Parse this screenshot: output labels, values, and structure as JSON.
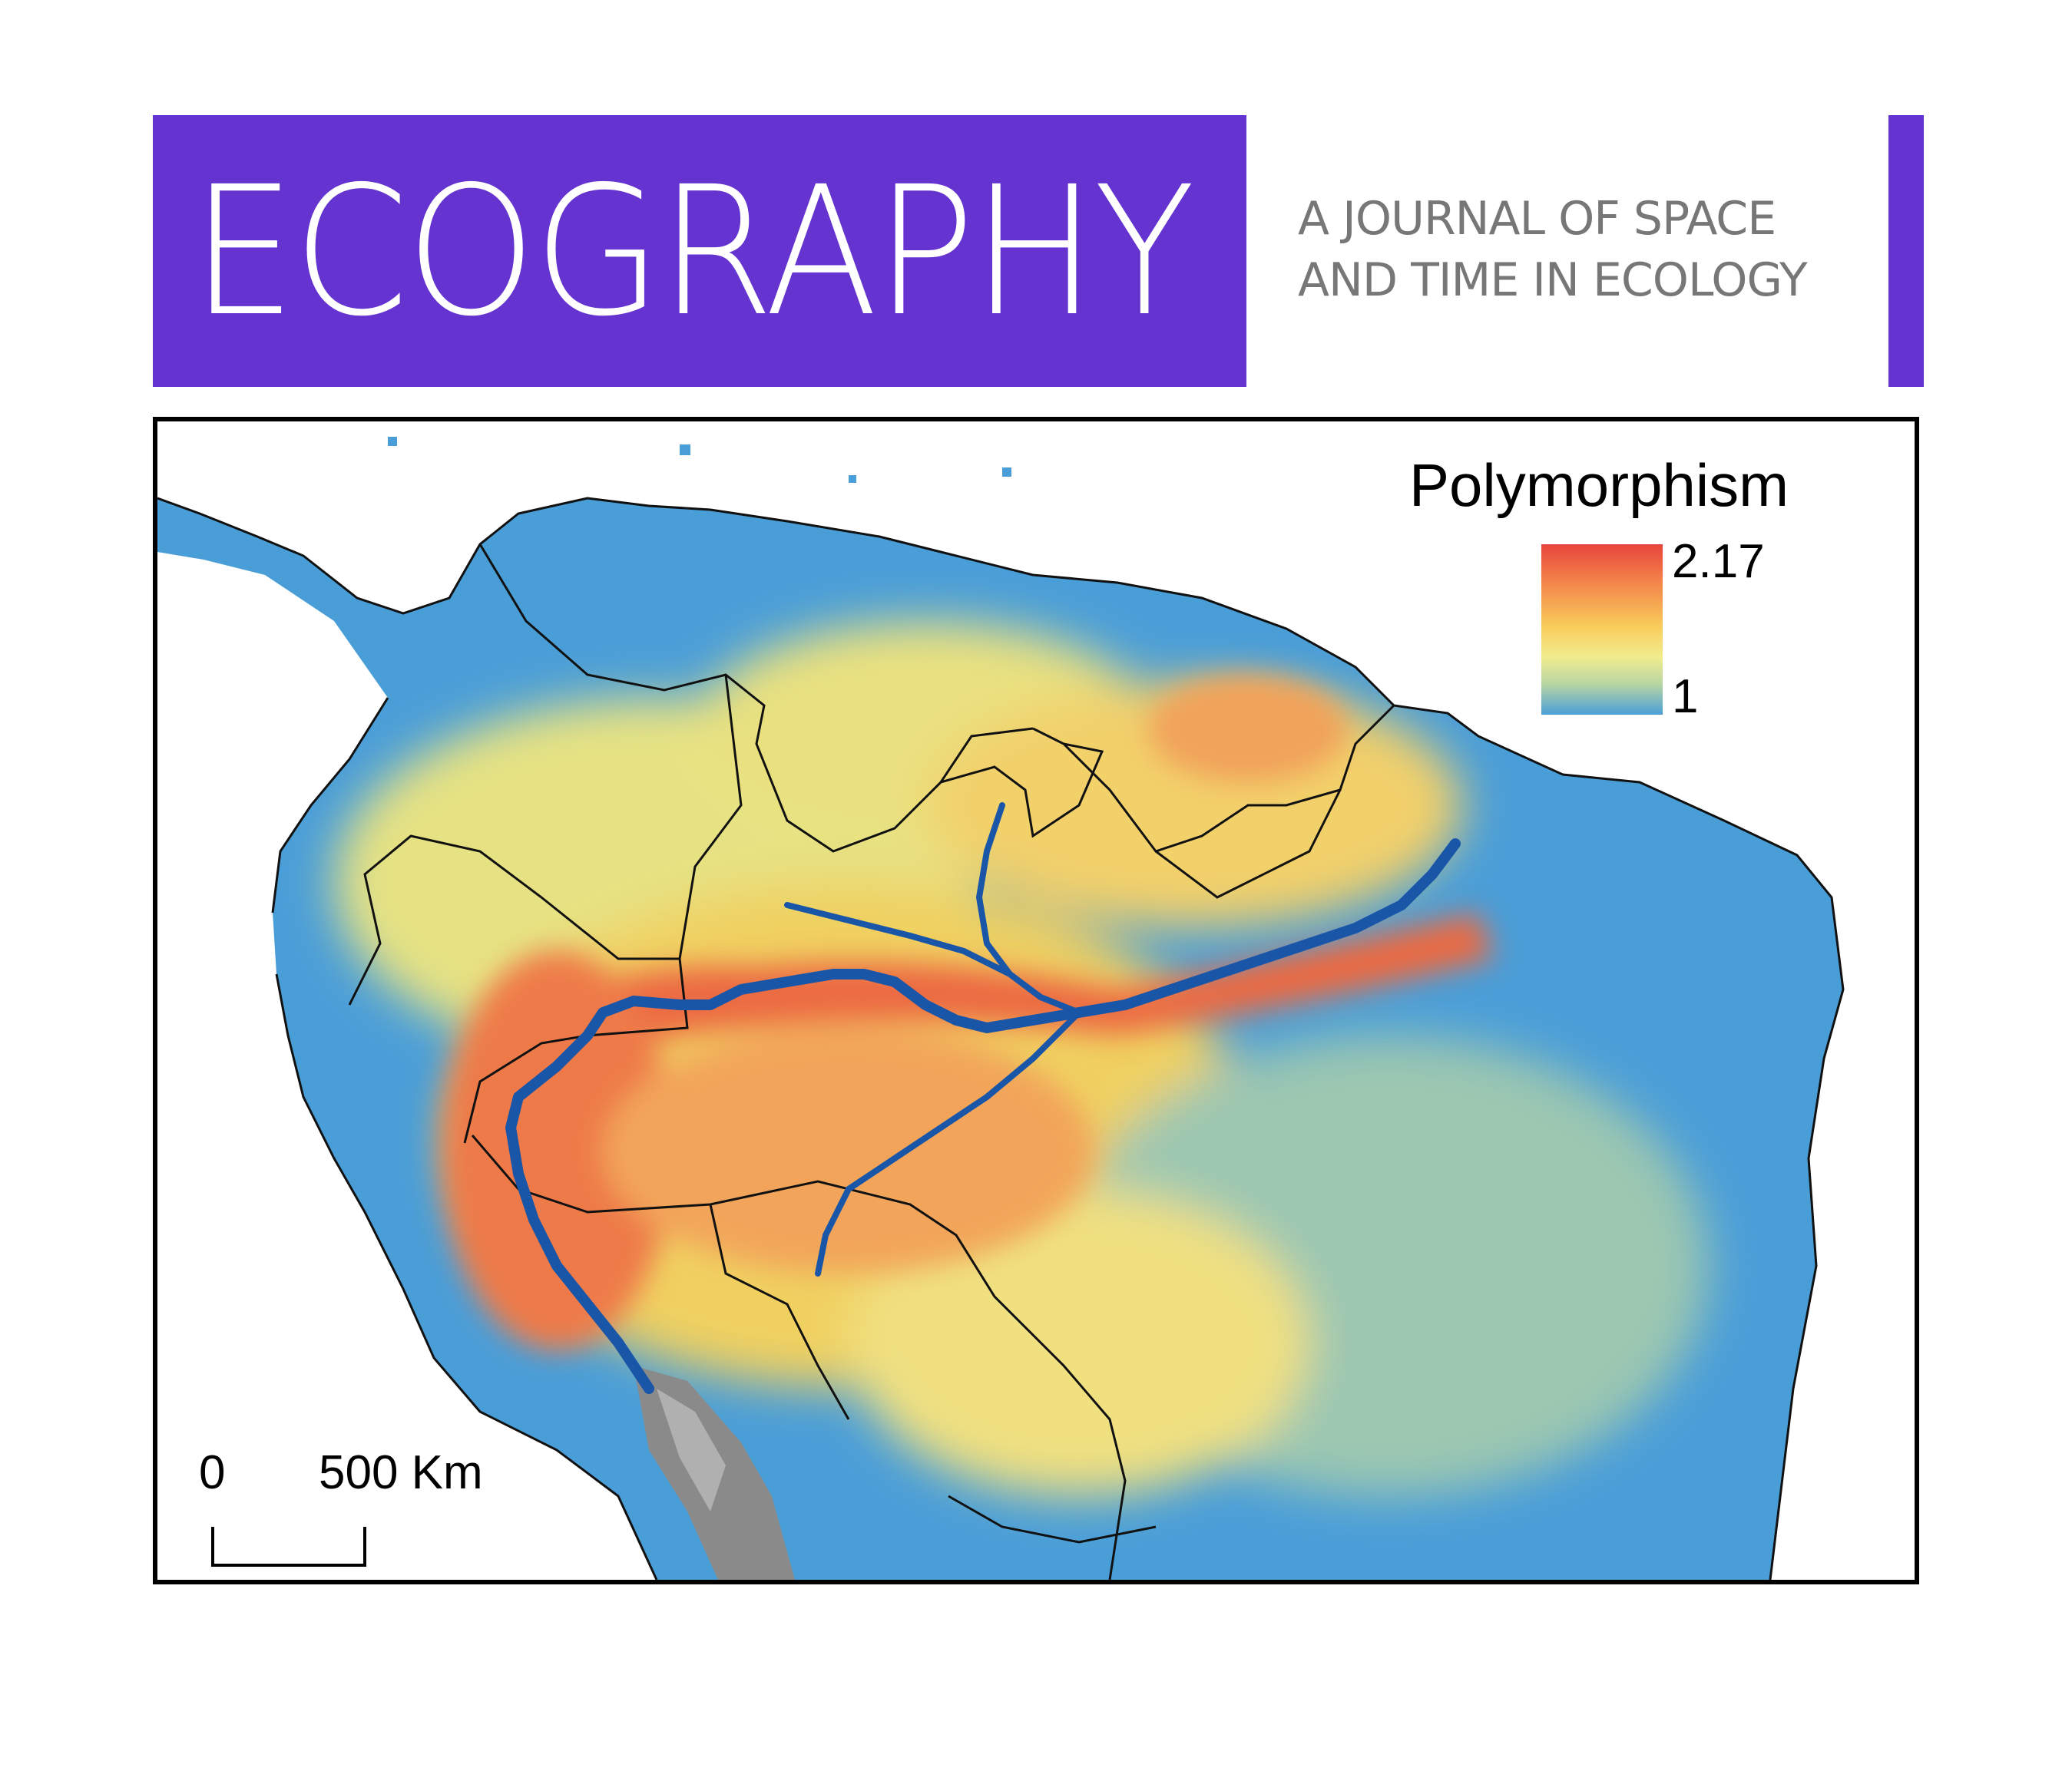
{
  "header": {
    "journal_name": "ECOGRAPHY",
    "tagline_line1": "A JOURNAL OF SPACE",
    "tagline_line2": "AND TIME IN ECOLOGY",
    "brand_color": "#6433d0"
  },
  "map": {
    "legend": {
      "title": "Polymorphism",
      "max_label": "2.17",
      "min_label": "1",
      "max_value": 2.17,
      "min_value": 1,
      "color_ramp": [
        "#e8453c",
        "#f3834a",
        "#f9cc5a",
        "#f1ec8e",
        "#b9d6a2",
        "#4a9ed8"
      ]
    },
    "scale_bar": {
      "zero_label": "0",
      "distance_label": "500 Km"
    },
    "colors": {
      "water_outside": "#ffffff",
      "river": "#1a56a8",
      "borders": "#111111",
      "andes_high": "#8a8a8a"
    }
  }
}
